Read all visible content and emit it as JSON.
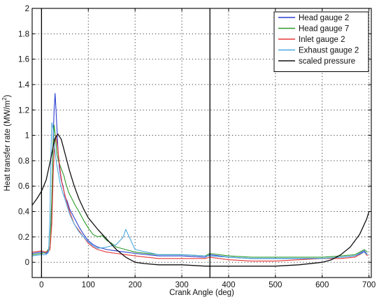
{
  "chart_data": {
    "type": "line",
    "title": "",
    "xlabel": "Crank Angle (deg)",
    "ylabel": "Heat transfer rate (MW/m",
    "ylabel_sup": "2",
    "ylabel_end": ")",
    "xlim": [
      -20,
      705
    ],
    "ylim": [
      -0.12,
      2
    ],
    "xticks": [
      0,
      100,
      200,
      300,
      400,
      500,
      600,
      700
    ],
    "yticks": [
      0,
      0.2,
      0.4,
      0.6,
      0.8,
      1,
      1.2,
      1.4,
      1.6,
      1.8,
      2
    ],
    "ytick_labels": [
      "0",
      "0.2",
      "0.4",
      "0.6",
      "0.8",
      "1",
      "1.2",
      "1.4",
      "1.6",
      "1.8",
      "2"
    ],
    "grid": true,
    "legend_position": "top-right",
    "vertical_markers": [
      0,
      360
    ],
    "series": [
      {
        "name": "Head gauge 2",
        "color": "#2b3fd0",
        "x": [
          -20,
          0,
          10,
          18,
          22,
          25,
          27,
          29,
          31,
          33,
          35,
          38,
          42,
          46,
          50,
          55,
          60,
          70,
          80,
          90,
          100,
          110,
          120,
          140,
          160,
          180,
          200,
          250,
          300,
          350,
          360,
          400,
          450,
          500,
          550,
          600,
          640,
          670,
          690,
          697
        ],
        "y": [
          0.07,
          0.08,
          0.07,
          0.1,
          0.45,
          1.0,
          1.2,
          1.33,
          1.2,
          1.05,
          0.9,
          0.75,
          0.65,
          0.6,
          0.52,
          0.48,
          0.42,
          0.35,
          0.28,
          0.22,
          0.17,
          0.14,
          0.12,
          0.1,
          0.09,
          0.08,
          0.07,
          0.05,
          0.05,
          0.04,
          0.06,
          0.04,
          0.03,
          0.03,
          0.03,
          0.03,
          0.04,
          0.05,
          0.09,
          0.06
        ]
      },
      {
        "name": "Head gauge 7",
        "color": "#2a9a2a",
        "x": [
          -20,
          0,
          10,
          18,
          22,
          25,
          27,
          30,
          33,
          36,
          40,
          44,
          48,
          52,
          58,
          65,
          72,
          80,
          90,
          100,
          110,
          120,
          130,
          140,
          150,
          160,
          180,
          200,
          250,
          300,
          350,
          360,
          400,
          450,
          500,
          550,
          600,
          640,
          670,
          690,
          697
        ],
        "y": [
          0.06,
          0.07,
          0.08,
          0.12,
          0.5,
          0.95,
          1.08,
          0.98,
          0.85,
          0.8,
          0.76,
          0.72,
          0.68,
          0.62,
          0.55,
          0.5,
          0.45,
          0.4,
          0.33,
          0.27,
          0.22,
          0.2,
          0.21,
          0.17,
          0.15,
          0.12,
          0.1,
          0.08,
          0.06,
          0.06,
          0.05,
          0.07,
          0.05,
          0.04,
          0.04,
          0.04,
          0.04,
          0.05,
          0.06,
          0.1,
          0.08
        ]
      },
      {
        "name": "Inlet gauge 2",
        "color": "#e83838",
        "x": [
          -20,
          0,
          10,
          18,
          22,
          25,
          28,
          31,
          34,
          37,
          40,
          44,
          48,
          52,
          56,
          62,
          70,
          80,
          90,
          100,
          110,
          120,
          140,
          160,
          180,
          200,
          250,
          300,
          350,
          360,
          400,
          450,
          500,
          550,
          600,
          640,
          670,
          690,
          697
        ],
        "y": [
          0.08,
          0.09,
          0.08,
          0.1,
          0.3,
          0.7,
          0.95,
          1.0,
          0.92,
          0.82,
          0.72,
          0.62,
          0.56,
          0.5,
          0.45,
          0.38,
          0.3,
          0.25,
          0.2,
          0.15,
          0.12,
          0.1,
          0.08,
          0.07,
          0.06,
          0.05,
          0.03,
          0.03,
          0.03,
          0.04,
          0.02,
          0.01,
          0.01,
          0.02,
          0.03,
          0.03,
          0.04,
          0.08,
          0.05
        ]
      },
      {
        "name": "Exhaust gauge 2",
        "color": "#4aa8e0",
        "x": [
          -20,
          0,
          10,
          15,
          18,
          20,
          22,
          25,
          28,
          32,
          36,
          40,
          45,
          50,
          55,
          60,
          70,
          80,
          90,
          100,
          110,
          120,
          140,
          160,
          175,
          180,
          185,
          190,
          195,
          200,
          250,
          300,
          350,
          360,
          400,
          450,
          500,
          550,
          600,
          640,
          670,
          690,
          697
        ],
        "y": [
          0.05,
          0.06,
          0.06,
          0.08,
          0.35,
          0.85,
          1.1,
          1.05,
          0.9,
          0.78,
          0.7,
          0.62,
          0.55,
          0.5,
          0.44,
          0.38,
          0.3,
          0.24,
          0.2,
          0.16,
          0.13,
          0.11,
          0.12,
          0.14,
          0.2,
          0.26,
          0.22,
          0.18,
          0.14,
          0.1,
          0.06,
          0.06,
          0.05,
          0.05,
          0.04,
          0.03,
          0.03,
          0.03,
          0.03,
          0.04,
          0.05,
          0.08,
          0.06
        ]
      },
      {
        "name": "scaled pressure",
        "color": "#111111",
        "x": [
          -20,
          -10,
          0,
          10,
          20,
          28,
          35,
          42,
          50,
          60,
          70,
          80,
          90,
          100,
          120,
          140,
          160,
          180,
          200,
          220,
          250,
          300,
          350,
          400,
          450,
          500,
          550,
          600,
          620,
          640,
          660,
          680,
          695,
          700
        ],
        "y": [
          0.45,
          0.5,
          0.56,
          0.65,
          0.82,
          0.97,
          1.01,
          0.97,
          0.86,
          0.72,
          0.6,
          0.5,
          0.42,
          0.35,
          0.26,
          0.18,
          0.1,
          0.04,
          0.0,
          -0.01,
          -0.02,
          -0.02,
          -0.03,
          -0.03,
          -0.03,
          -0.03,
          -0.02,
          0.0,
          0.02,
          0.06,
          0.12,
          0.22,
          0.34,
          0.4
        ]
      }
    ]
  }
}
